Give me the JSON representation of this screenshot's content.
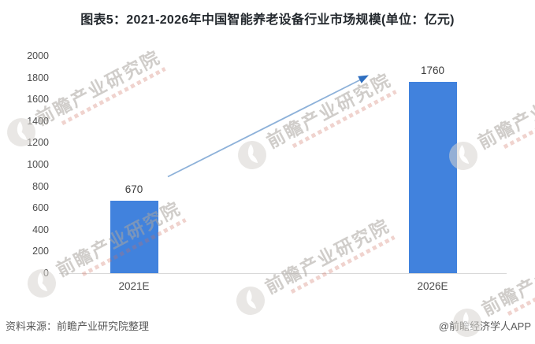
{
  "title": "图表5：2021-2026年中国智能养老设备行业市场规模(单位：亿元)",
  "chart_data": {
    "type": "bar",
    "title": "图表5：2021-2026年中国智能养老设备行业市场规模(单位：亿元)",
    "unit": "亿元",
    "categories": [
      "2021E",
      "2026E"
    ],
    "values": [
      670,
      1760
    ],
    "value_labels": [
      "670",
      "1760"
    ],
    "ylim": [
      0,
      2000
    ],
    "ytick_step": 200,
    "yticks": [
      0,
      200,
      400,
      600,
      800,
      1000,
      1200,
      1400,
      1600,
      1800,
      2000
    ],
    "grid": false,
    "legend_position": "none",
    "bar_color": "#4182dd",
    "annotation": {
      "type": "growth-arrow",
      "line_color": "#8db1d9",
      "head_color": "#2f6fc0"
    }
  },
  "footer": {
    "source": "资料来源：前瞻产业研究院整理",
    "brand": "@前瞻经济学人APP"
  },
  "watermark": {
    "text": "前瞻产业研究院",
    "logo": "qianzhan-logo"
  }
}
